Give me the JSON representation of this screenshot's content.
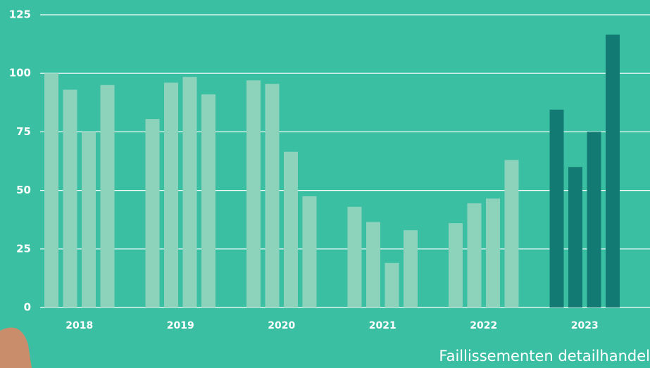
{
  "chart_data": {
    "type": "grouped-bar",
    "caption": "Faillissementen detailhandel",
    "groups": [
      {
        "label": "2018",
        "color": "#8dd3bc",
        "values": [
          100,
          93,
          75,
          95
        ]
      },
      {
        "label": "2019",
        "color": "#8dd3bc",
        "values": [
          80.5,
          96,
          98.5,
          91
        ]
      },
      {
        "label": "2020",
        "color": "#8dd3bc",
        "values": [
          97,
          95.5,
          66.5,
          47.5
        ]
      },
      {
        "label": "2021",
        "color": "#8dd3bc",
        "values": [
          43,
          36.5,
          19,
          33
        ]
      },
      {
        "label": "2022",
        "color": "#8dd3bc",
        "values": [
          36,
          44.5,
          46.5,
          63
        ]
      },
      {
        "label": "2023",
        "color": "#127a73",
        "values": [
          84.5,
          60,
          75,
          116.5
        ]
      }
    ],
    "ylim": [
      0,
      125
    ],
    "yticks": [
      0,
      25,
      50,
      75,
      100,
      125
    ],
    "grid": true
  }
}
